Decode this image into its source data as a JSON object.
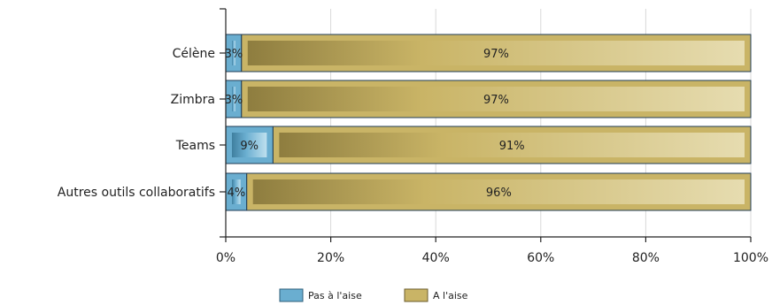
{
  "chart_data": {
    "type": "bar",
    "orientation": "horizontal",
    "stacked": true,
    "categories": [
      "Célène",
      "Zimbra",
      "Teams",
      "Autres outils collaboratifs"
    ],
    "series": [
      {
        "name": "Pas à l'aise",
        "values": [
          3,
          3,
          9,
          4
        ],
        "labels": [
          "3%",
          "3%",
          "9%",
          "4%"
        ],
        "color": "#6aaed0"
      },
      {
        "name": "A l'aise",
        "values": [
          97,
          97,
          91,
          96
        ],
        "labels": [
          "97%",
          "97%",
          "91%",
          "96%"
        ],
        "color": "#c9b466"
      }
    ],
    "xlim": [
      0,
      100
    ],
    "xticks": [
      0,
      20,
      40,
      60,
      80,
      100
    ],
    "xtick_labels": [
      "0%",
      "20%",
      "40%",
      "60%",
      "80%",
      "100%"
    ],
    "grid": "vertical",
    "legend_position": "bottom"
  }
}
